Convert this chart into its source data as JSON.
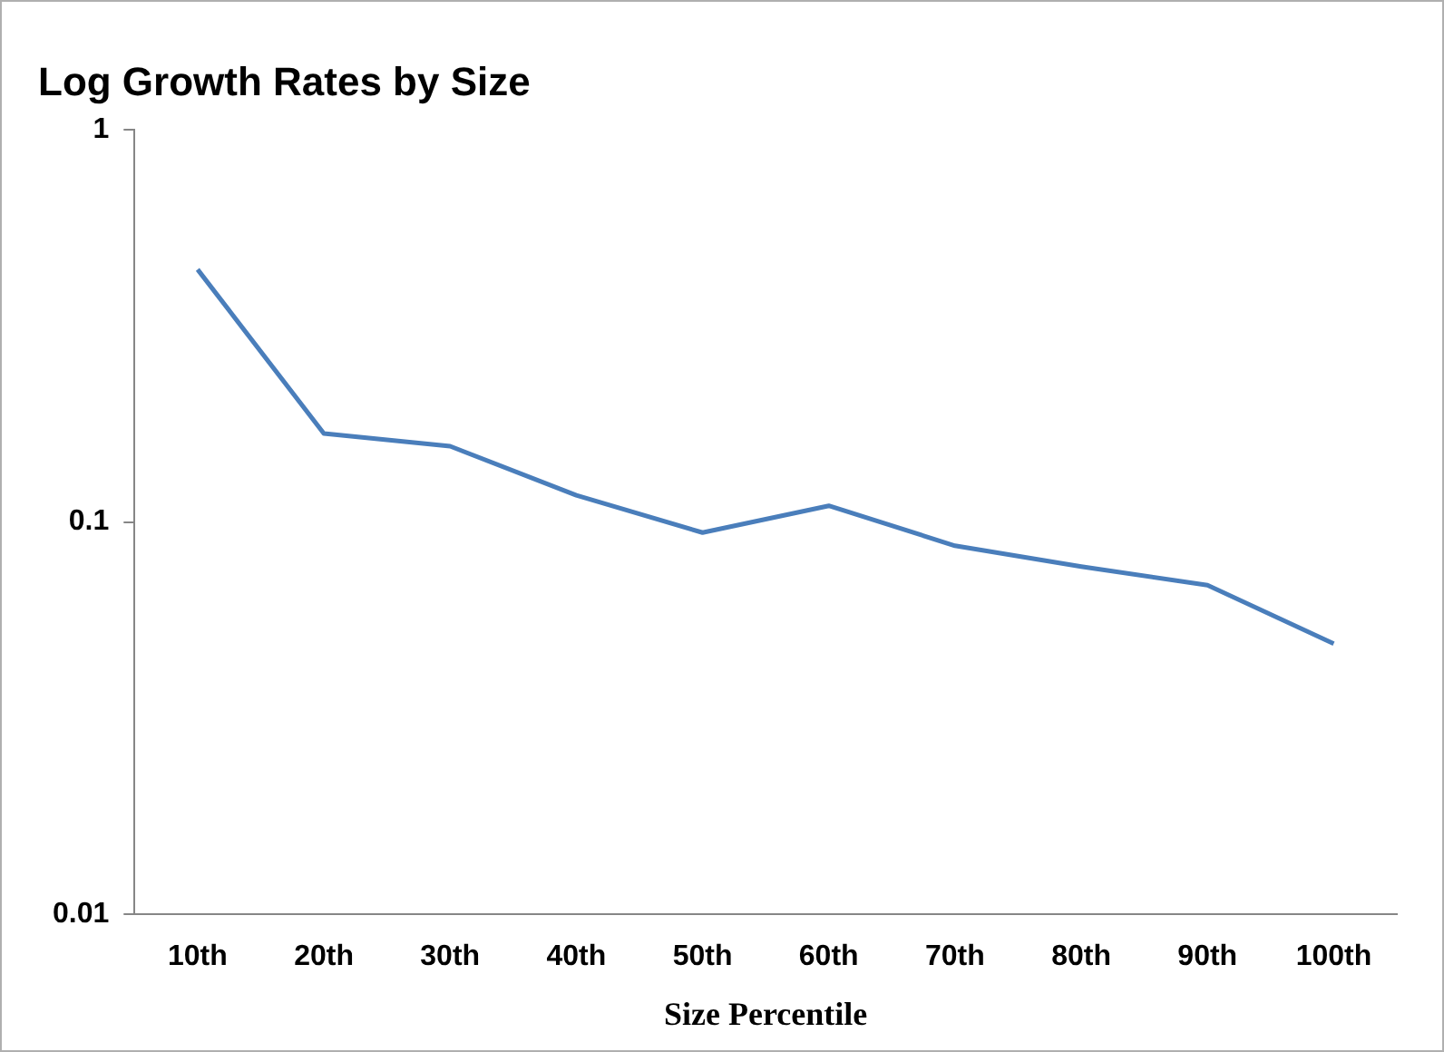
{
  "chart_data": {
    "type": "line",
    "title": "Log Growth Rates by Size",
    "xlabel": "Size Percentile",
    "categories": [
      "10th",
      "20th",
      "30th",
      "40th",
      "50th",
      "60th",
      "70th",
      "80th",
      "90th",
      "100th"
    ],
    "series": [
      {
        "color": "#4a7ebb",
        "values": [
          0.44,
          0.168,
          0.156,
          0.117,
          0.094,
          0.11,
          0.087,
          0.077,
          0.069,
          0.049
        ]
      }
    ],
    "log": "y",
    "ylim": [
      0.01,
      1
    ],
    "yticks": [
      0.01,
      0.1,
      1
    ],
    "grid": false,
    "legend": false,
    "marker": "none",
    "line_style": "solid"
  }
}
